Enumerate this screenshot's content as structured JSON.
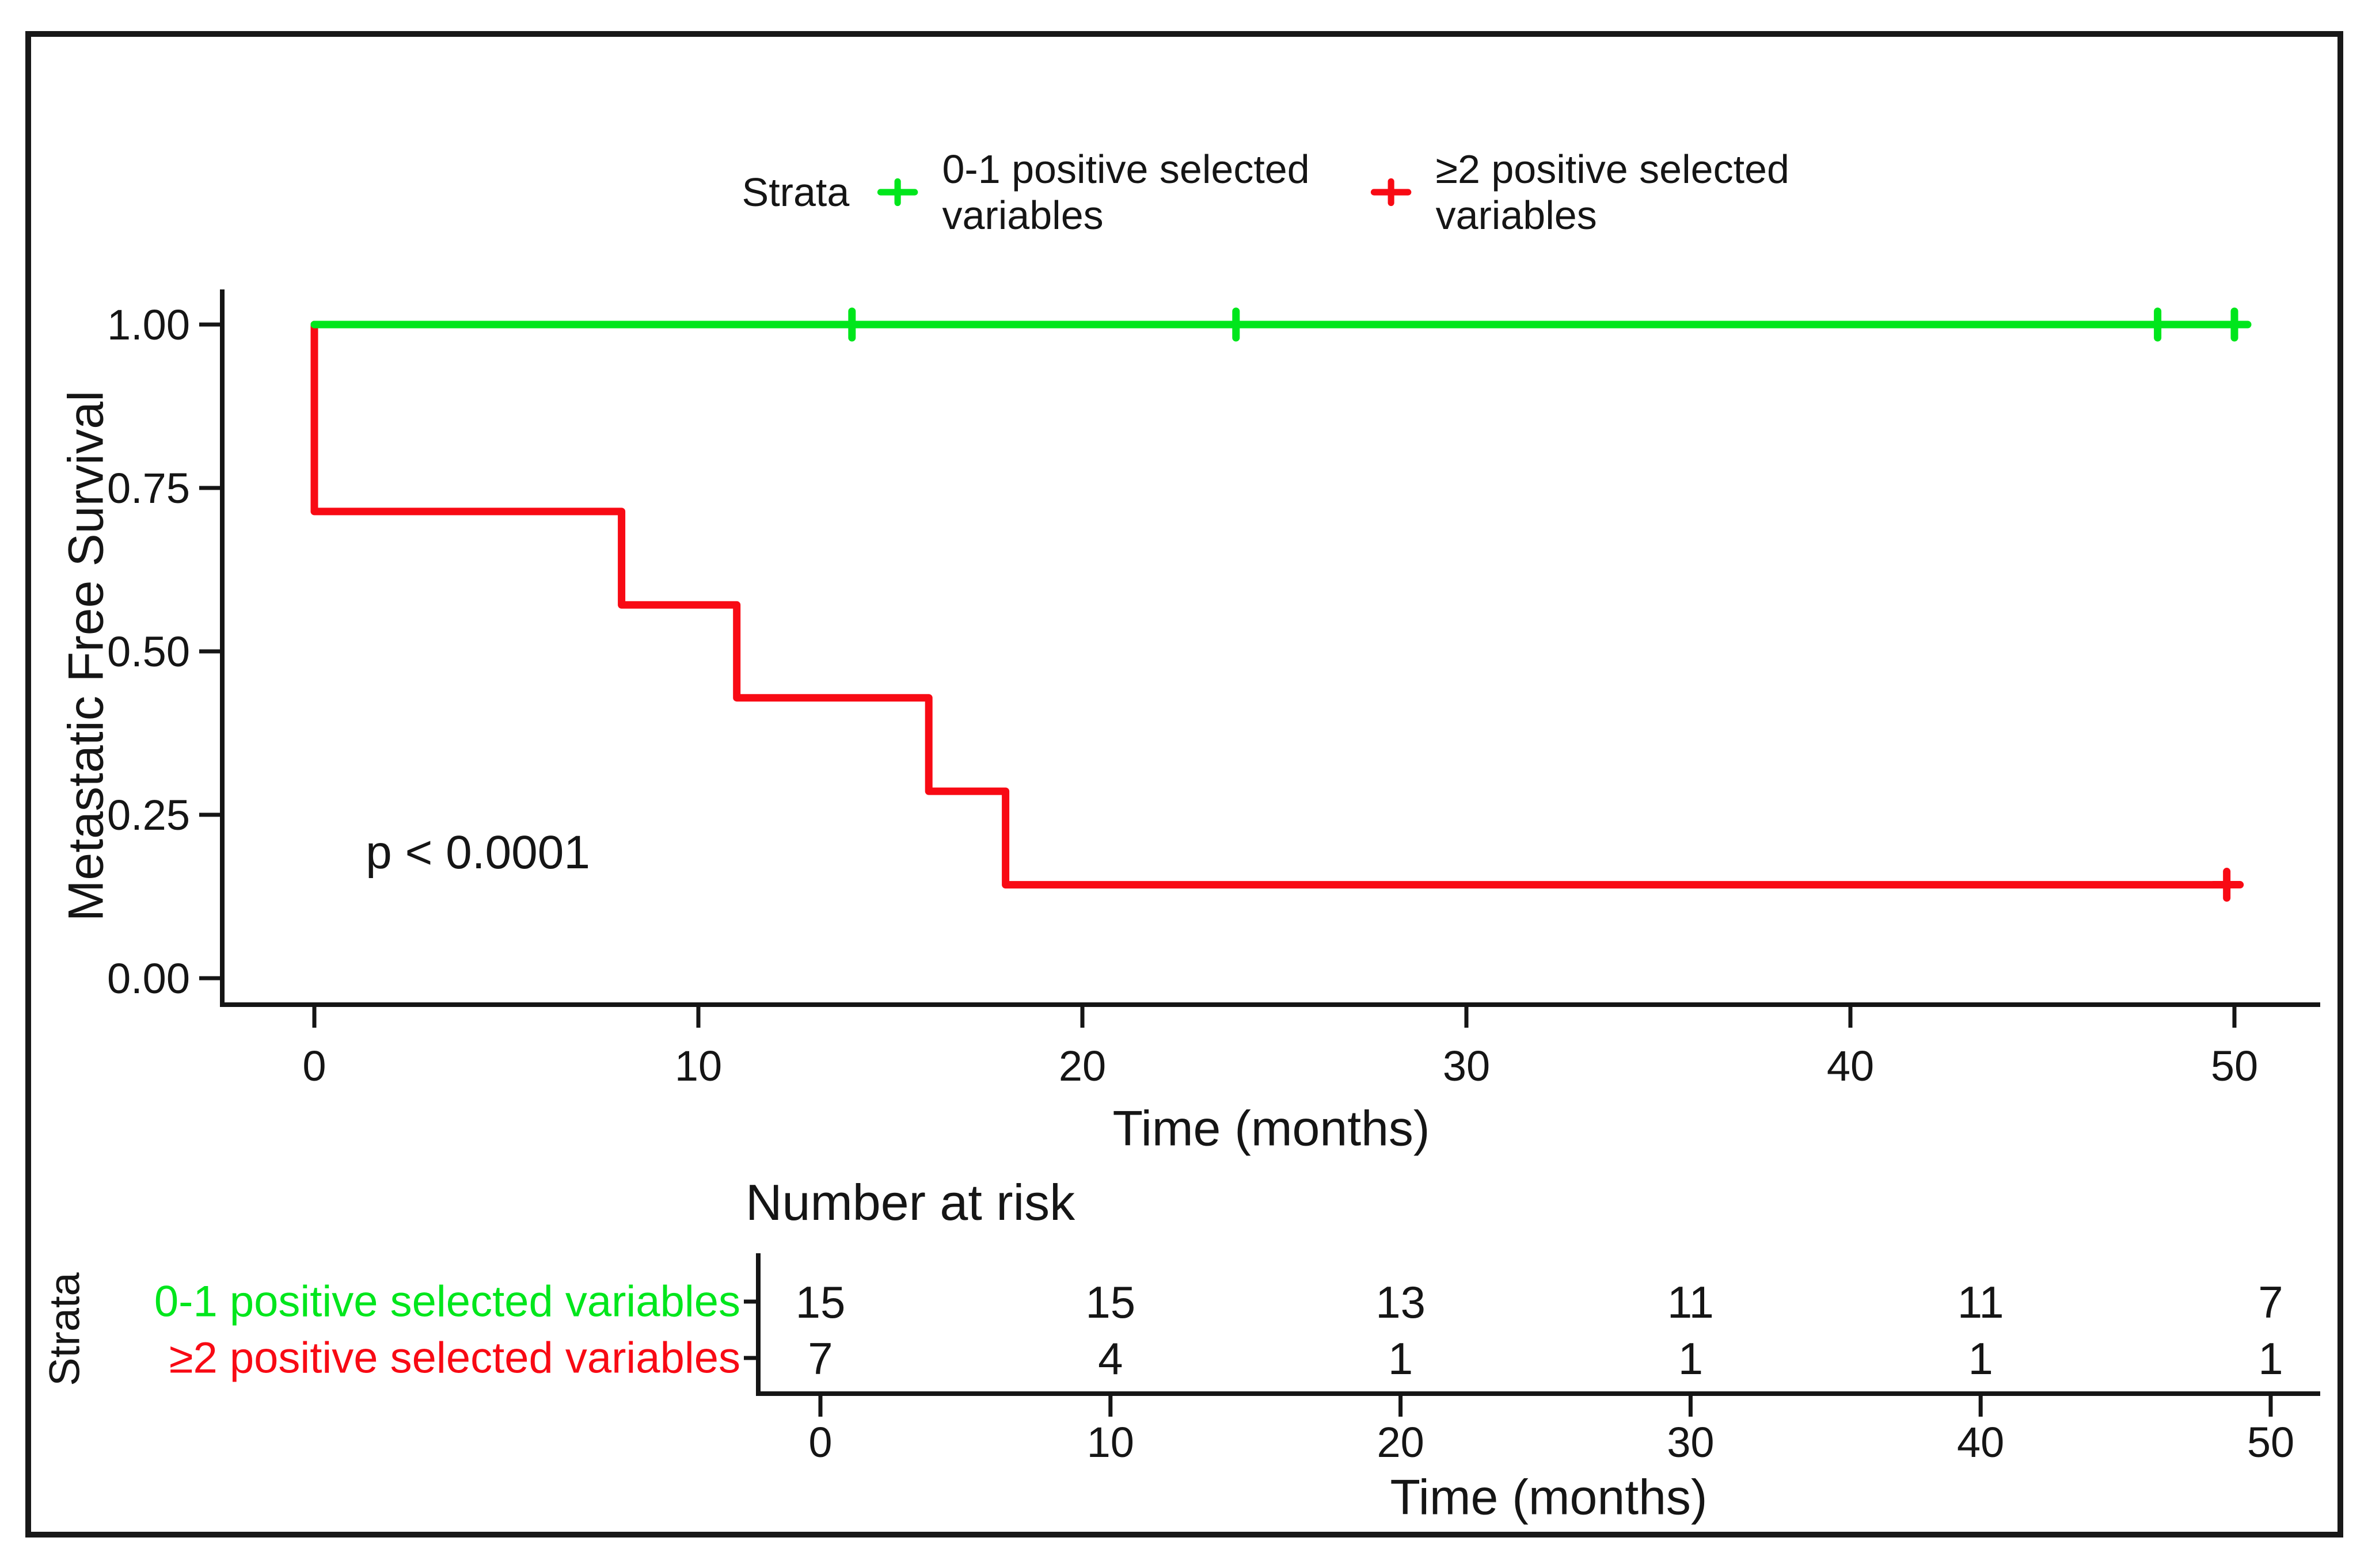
{
  "chart_data": {
    "type": "line",
    "subtype": "kaplan-meier-step",
    "title": "",
    "ylabel": "Metastatic Free Survival",
    "xlabel": "Time (months)",
    "annotation": "p < 0.0001",
    "legend_title": "Strata",
    "legend_position": "top",
    "grid": false,
    "xlim": [
      0,
      50
    ],
    "ylim": [
      0,
      1
    ],
    "x_ticks": [
      "0",
      "10",
      "20",
      "30",
      "40",
      "50"
    ],
    "x_tick_values": [
      0,
      10,
      20,
      30,
      40,
      50
    ],
    "y_tick_labels": [
      "1.00",
      "0.75",
      "0.50",
      "0.25",
      "0.00"
    ],
    "y_tick_values": [
      1.0,
      0.75,
      0.5,
      0.25,
      0.0
    ],
    "axis_color": "#151515",
    "series": [
      {
        "name": "0-1 positive selected variables",
        "color": "#00E61C",
        "steps": [
          [
            0,
            1.0
          ],
          [
            50.2,
            1.0
          ]
        ],
        "censor_marks": [
          [
            14,
            1.0
          ],
          [
            24,
            1.0
          ],
          [
            48,
            1.0
          ],
          [
            50,
            1.0
          ]
        ]
      },
      {
        "name": "≥2 positive selected variables",
        "color": "#F80A14",
        "steps": [
          [
            0,
            1.0
          ],
          [
            0,
            0.714
          ],
          [
            8,
            0.714
          ],
          [
            8,
            0.571
          ],
          [
            11,
            0.571
          ],
          [
            11,
            0.429
          ],
          [
            16,
            0.429
          ],
          [
            16,
            0.286
          ],
          [
            18,
            0.286
          ],
          [
            18,
            0.143
          ],
          [
            49.8,
            0.143
          ]
        ],
        "censor_marks": [
          [
            49.8,
            0.143
          ]
        ]
      }
    ],
    "risk_table": {
      "title": "Number at risk",
      "axis_label": "Strata",
      "xlabel": "Time (months)",
      "times": [
        0,
        10,
        20,
        30,
        40,
        50
      ],
      "time_labels": [
        "0",
        "10",
        "20",
        "30",
        "40",
        "50"
      ],
      "rows": [
        {
          "label": "0-1 positive selected variables",
          "color": "#00E61C",
          "counts": [
            "15",
            "15",
            "13",
            "11",
            "11",
            "7"
          ]
        },
        {
          "label": "≥2 positive selected variables",
          "color": "#F80A14",
          "counts": [
            "7",
            "4",
            "1",
            "1",
            "1",
            "1"
          ]
        }
      ]
    }
  }
}
